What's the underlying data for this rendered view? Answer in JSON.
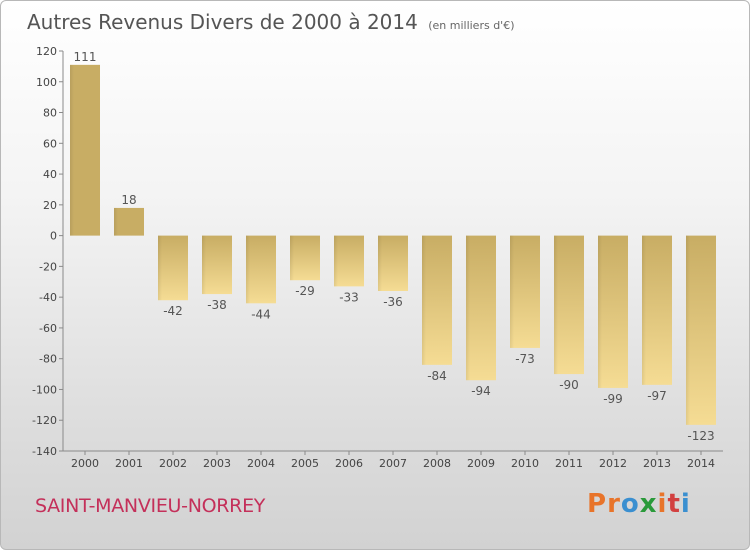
{
  "header": {
    "title": "Autres Revenus Divers de 2000 à 2014",
    "subtitle": "(en milliers d'€)"
  },
  "footer": {
    "commune": "SAINT-MANVIEU-NORREY",
    "logo_text": "Proxiti",
    "logo_colors": [
      "#e8742a",
      "#e8742a",
      "#3a8fd0",
      "#2a9a3a",
      "#e8742a",
      "#d24040",
      "#3a8fd0"
    ]
  },
  "chart_data": {
    "type": "bar",
    "title": "Autres Revenus Divers de 2000 à 2014",
    "subtitle": "(en milliers d'€)",
    "categories": [
      "2000",
      "2001",
      "2002",
      "2003",
      "2004",
      "2005",
      "2006",
      "2007",
      "2008",
      "2009",
      "2010",
      "2011",
      "2012",
      "2013",
      "2014"
    ],
    "values": [
      111,
      18,
      -42,
      -38,
      -44,
      -29,
      -33,
      -36,
      -84,
      -94,
      -73,
      -90,
      -99,
      -97,
      -123
    ],
    "ylim": [
      -140,
      120
    ],
    "yticks": [
      120,
      100,
      80,
      60,
      40,
      20,
      0,
      -20,
      -40,
      -60,
      -80,
      -100,
      -120,
      -140
    ],
    "grid": false,
    "legend": "none",
    "bar_color_light": "#f5dc94",
    "bar_color_dark": "#c8ad64"
  }
}
